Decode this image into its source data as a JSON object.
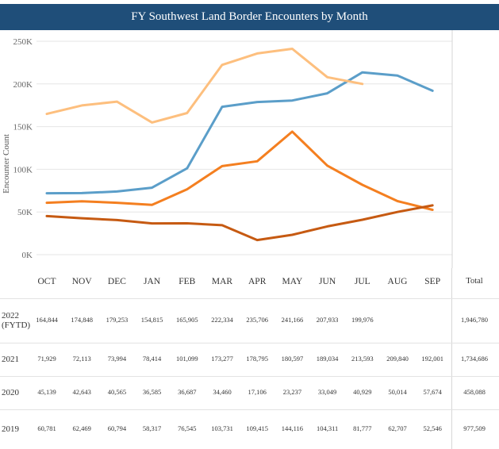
{
  "chart_data": {
    "type": "line",
    "title": "FY Southwest Land Border Encounters by Month",
    "xlabel": "",
    "ylabel": "Encounter Count",
    "ylim": [
      0,
      250000
    ],
    "yticks": [
      0,
      50000,
      100000,
      150000,
      200000,
      250000
    ],
    "ytick_labels": [
      "0K",
      "50K",
      "100K",
      "150K",
      "200K",
      "250K"
    ],
    "categories": [
      "OCT",
      "NOV",
      "DEC",
      "JAN",
      "FEB",
      "MAR",
      "APR",
      "MAY",
      "JUN",
      "JUL",
      "AUG",
      "SEP"
    ],
    "series": [
      {
        "name": "2022 (FYTD)",
        "label_line1": "2022",
        "label_line2": "(FYTD)",
        "color": "#fdbf7e",
        "values": [
          164844,
          174848,
          179253,
          154815,
          165905,
          222334,
          235706,
          241166,
          207933,
          199976,
          null,
          null
        ],
        "display": [
          "164,844",
          "174,848",
          "179,253",
          "154,815",
          "165,905",
          "222,334",
          "235,706",
          "241,166",
          "207,933",
          "199,976",
          "",
          ""
        ],
        "total": "1,946,780"
      },
      {
        "name": "2021",
        "label_line1": "2021",
        "label_line2": "",
        "color": "#5b9ec9",
        "values": [
          71929,
          72113,
          73994,
          78414,
          101099,
          173277,
          178795,
          180597,
          189034,
          213593,
          209840,
          192001
        ],
        "display": [
          "71,929",
          "72,113",
          "73,994",
          "78,414",
          "101,099",
          "173,277",
          "178,795",
          "180,597",
          "189,034",
          "213,593",
          "209,840",
          "192,001"
        ],
        "total": "1,734,686"
      },
      {
        "name": "2020",
        "label_line1": "2020",
        "label_line2": "",
        "color": "#c65a12",
        "values": [
          45139,
          42643,
          40565,
          36585,
          36687,
          34460,
          17106,
          23237,
          33049,
          40929,
          50014,
          57674
        ],
        "display": [
          "45,139",
          "42,643",
          "40,565",
          "36,585",
          "36,687",
          "34,460",
          "17,106",
          "23,237",
          "33,049",
          "40,929",
          "50,014",
          "57,674"
        ],
        "total": "458,088"
      },
      {
        "name": "2019",
        "label_line1": "2019",
        "label_line2": "",
        "color": "#f47f20",
        "values": [
          60781,
          62469,
          60794,
          58317,
          76545,
          103731,
          109415,
          144116,
          104311,
          81777,
          62707,
          52546
        ],
        "display": [
          "60,781",
          "62,469",
          "60,794",
          "58,317",
          "76,545",
          "103,731",
          "109,415",
          "144,116",
          "104,311",
          "81,777",
          "62,707",
          "52,546"
        ],
        "total": "977,509"
      }
    ],
    "total_label": "Total",
    "grid": true
  },
  "style": {
    "title_bg": "#1f4e79",
    "grid_color": "#e6e6e6",
    "axis_text": "#666666"
  }
}
